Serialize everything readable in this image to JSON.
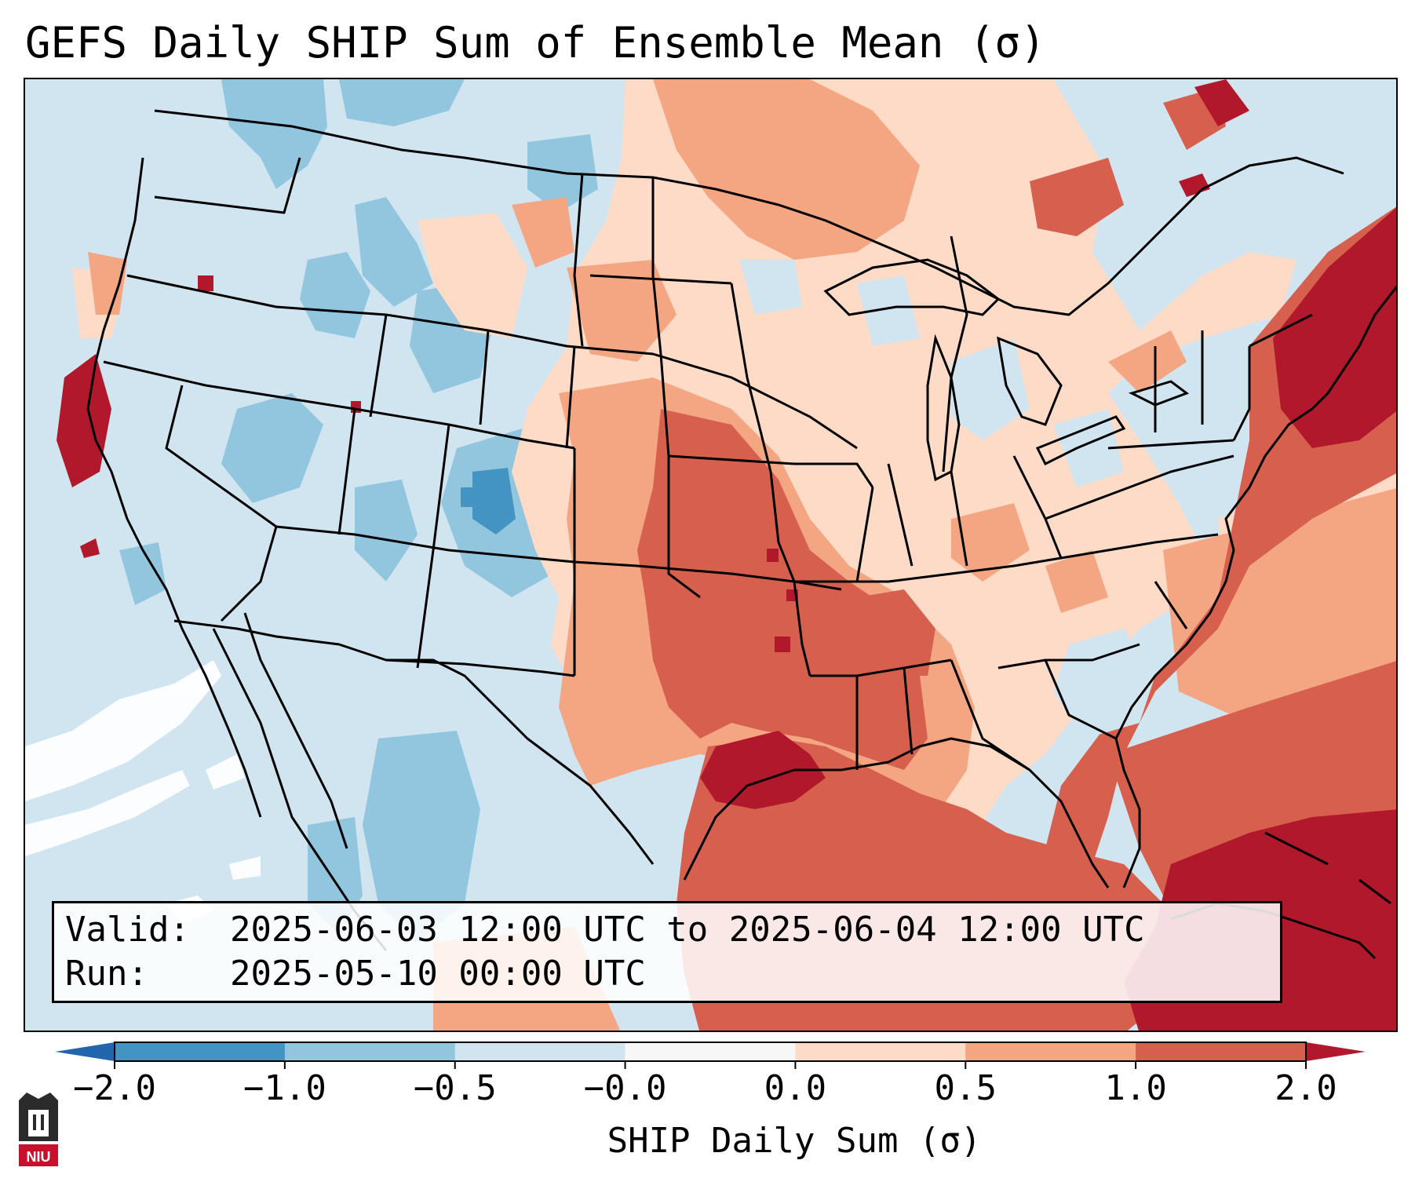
{
  "title": "GEFS Daily SHIP Sum of Ensemble Mean (σ)",
  "info": {
    "valid_label": "Valid:",
    "valid_value": "2025-06-03 12:00 UTC to 2025-06-04 12:00 UTC",
    "run_label": "Run:",
    "run_value": "2025-05-10 00:00 UTC"
  },
  "colorbar": {
    "label": "SHIP Daily Sum (σ)",
    "ticks": [
      "−2.0",
      "−1.0",
      "−0.5",
      "−0.0",
      "0.0",
      "0.5",
      "1.0",
      "2.0"
    ],
    "bins": [
      {
        "from": -2.0,
        "to": -1.0,
        "color": "#4393c3"
      },
      {
        "from": -1.0,
        "to": -0.5,
        "color": "#92c5de"
      },
      {
        "from": -0.5,
        "to": -0.0,
        "color": "#d1e5f0"
      },
      {
        "from": -0.0,
        "to": 0.0,
        "color": "#f7f7f7"
      },
      {
        "from": 0.0,
        "to": 0.5,
        "color": "#fddbc7"
      },
      {
        "from": 0.5,
        "to": 1.0,
        "color": "#f4a582"
      },
      {
        "from": 1.0,
        "to": 2.0,
        "color": "#d6604d"
      }
    ],
    "under_color": "#2166ac",
    "over_color": "#b2182b",
    "extend": "both"
  },
  "map": {
    "region": "Contiguous United States",
    "field": "SHIP daily sum anomaly",
    "borders": [
      "coastlines",
      "state-borders",
      "country-borders"
    ]
  },
  "logo": {
    "text": "NIU",
    "color": "#c8102e"
  }
}
